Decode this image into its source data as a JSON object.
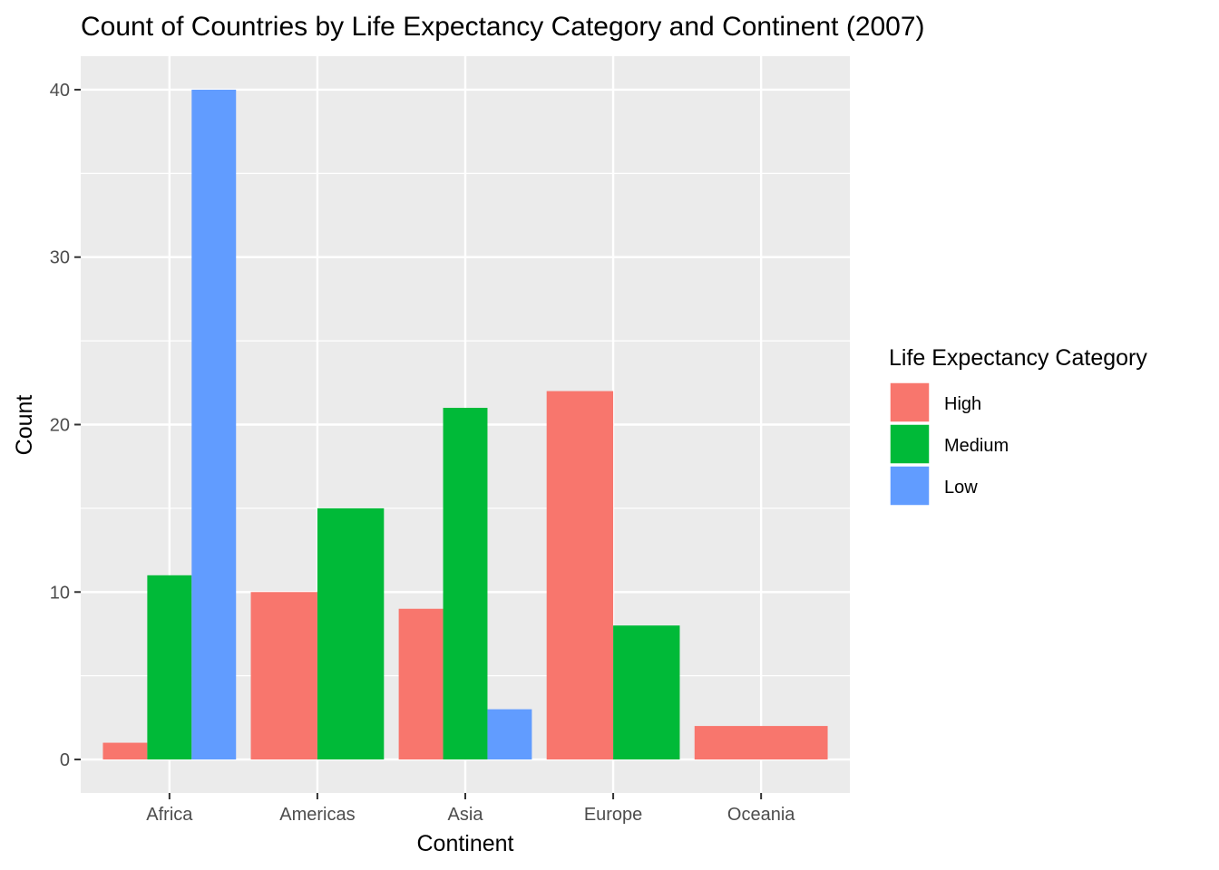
{
  "chart_data": {
    "type": "bar",
    "title": "Count of Countries by Life Expectancy Category and Continent (2007)",
    "xlabel": "Continent",
    "ylabel": "Count",
    "categories": [
      "Africa",
      "Americas",
      "Asia",
      "Europe",
      "Oceania"
    ],
    "series": [
      {
        "name": "High",
        "color": "#F8766D",
        "values": [
          1,
          10,
          9,
          22,
          2
        ]
      },
      {
        "name": "Medium",
        "color": "#00BA38",
        "values": [
          11,
          15,
          21,
          8,
          null
        ]
      },
      {
        "name": "Low",
        "color": "#619CFF",
        "values": [
          40,
          null,
          3,
          null,
          null
        ]
      }
    ],
    "ylim": [
      -2,
      42
    ],
    "yticks": [
      0,
      10,
      20,
      30,
      40
    ],
    "ytick_labels": [
      "0",
      "10",
      "20",
      "30",
      "40"
    ],
    "grid": true,
    "panel_background": "#EBEBEB",
    "legend": {
      "title": "Life Expectancy Category",
      "position": "right"
    }
  }
}
